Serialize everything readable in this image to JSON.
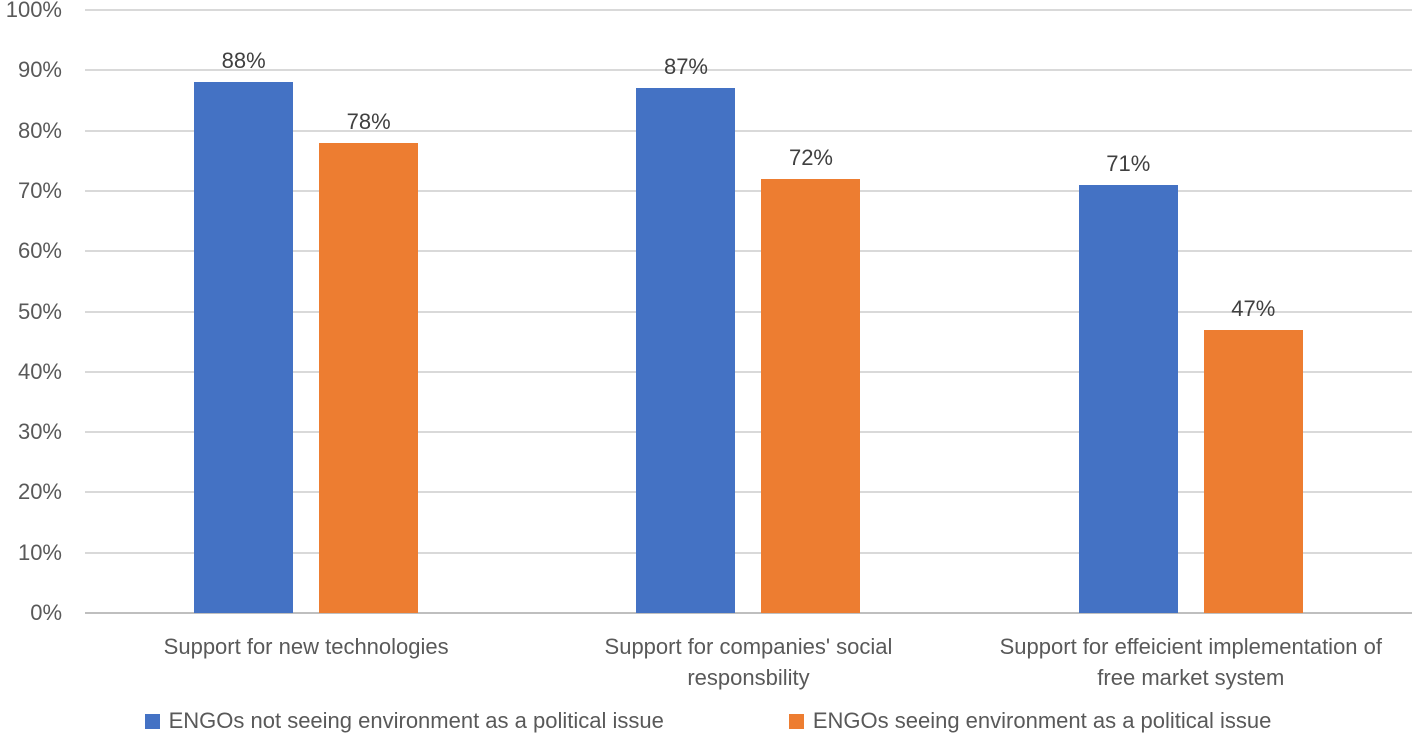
{
  "chart_data": {
    "type": "bar",
    "categories": [
      "Support for new technologies",
      "Support for companies' social\nresponsbility",
      "Support for effeicient implementation of\nfree market system"
    ],
    "series": [
      {
        "name": "ENGOs not seeing environment as a political issue",
        "color": "#4472C4",
        "values": [
          88,
          87,
          71
        ],
        "labels": [
          "88%",
          "87%",
          "71%"
        ]
      },
      {
        "name": "ENGOs seeing environment as a political issue",
        "color": "#ED7D31",
        "values": [
          78,
          72,
          47
        ],
        "labels": [
          "78%",
          "72%",
          "47%"
        ]
      }
    ],
    "title": "",
    "xlabel": "",
    "ylabel": "",
    "ylim": [
      0,
      100
    ],
    "y_ticks": [
      "0%",
      "10%",
      "20%",
      "30%",
      "40%",
      "50%",
      "60%",
      "70%",
      "80%",
      "90%",
      "100%"
    ],
    "grid": true,
    "legend_position": "bottom"
  },
  "colors": {
    "gridline": "#D9D9D9",
    "axis_line": "#BFBFBF",
    "tick_text": "#595959",
    "data_label_text": "#404040",
    "background": "#FFFFFF"
  }
}
